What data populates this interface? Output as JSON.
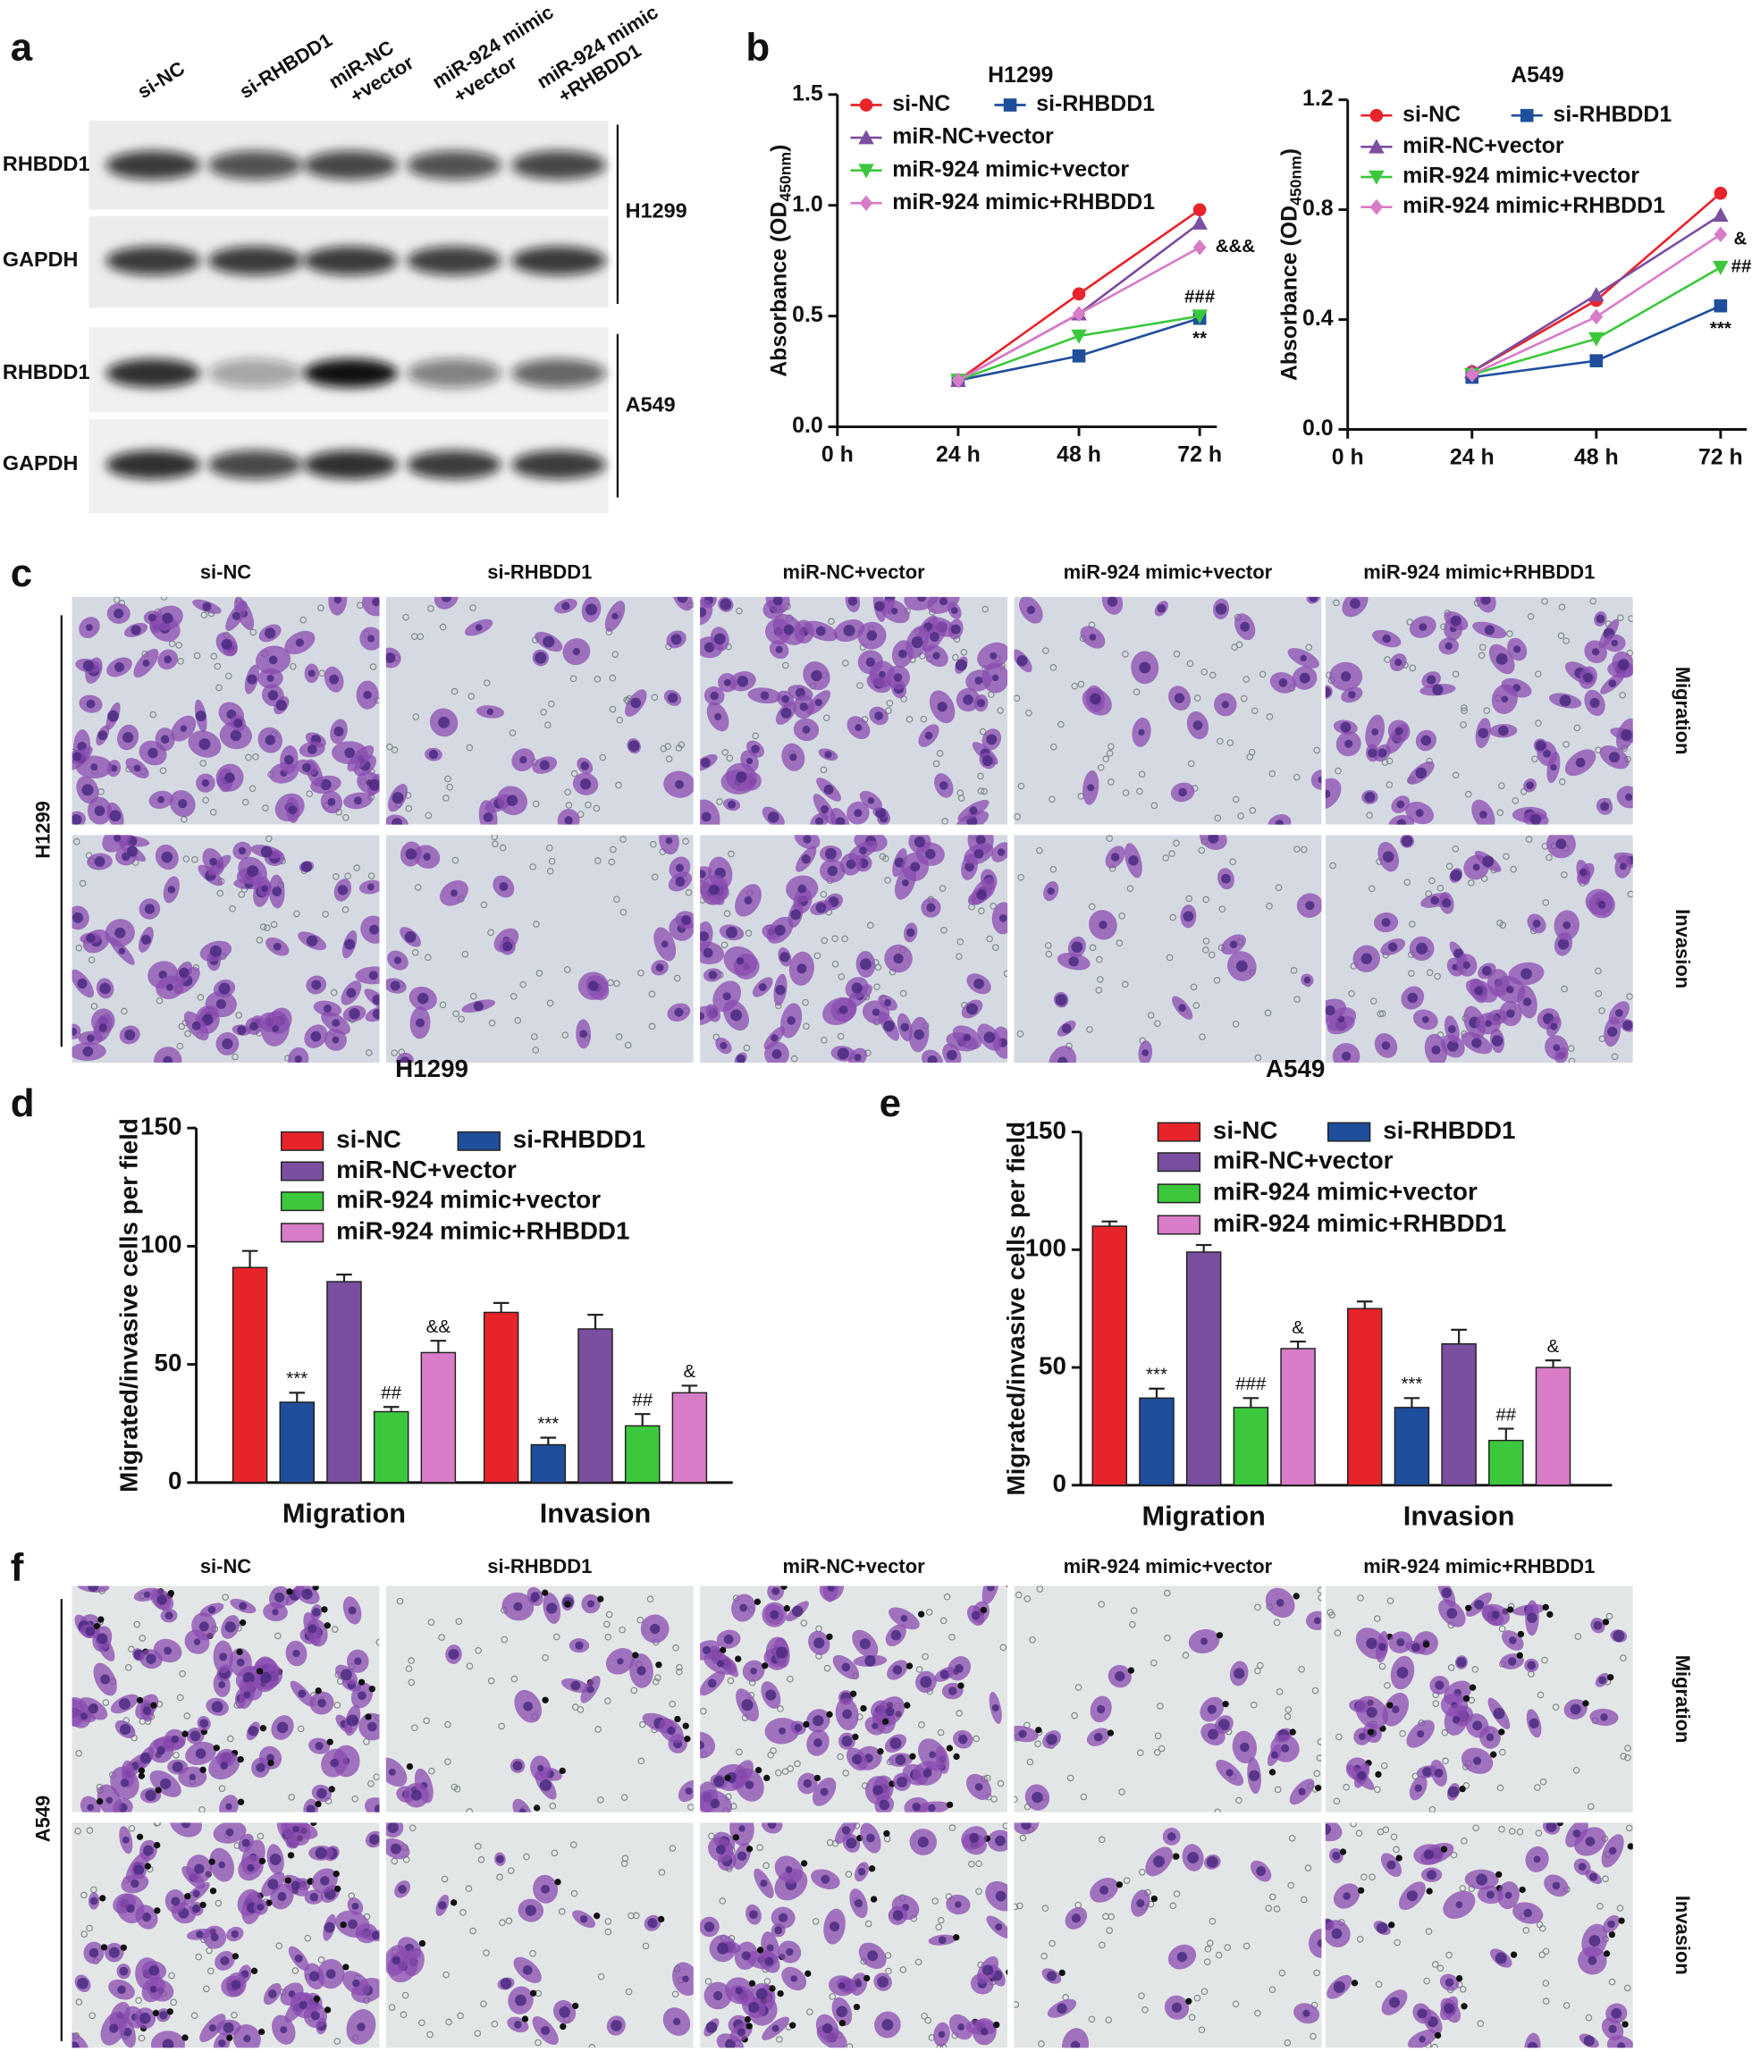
{
  "panel_labels": [
    "a",
    "b",
    "c",
    "d",
    "e",
    "f"
  ],
  "blot": {
    "lanes": [
      [
        "si-NC"
      ],
      [
        "si-RHBDD1"
      ],
      [
        "miR-NC",
        "+vector"
      ],
      [
        "miR-924 mimic",
        "+vector"
      ],
      [
        "miR-924 mimic",
        "+RHBDD1"
      ]
    ],
    "rows": [
      "RHBDD1",
      "GAPDH",
      "RHBDD1",
      "GAPDH"
    ],
    "cell_lines": [
      "H1299",
      "A549"
    ]
  },
  "micrographs": {
    "groups": [
      "si-NC",
      "si-RHBDD1",
      "miR-NC+vector",
      "miR-924 mimic+vector",
      "miR-924 mimic+RHBDD1"
    ],
    "rows": [
      "Migration",
      "Invasion"
    ],
    "cell_lines": [
      "H1299",
      "A549"
    ]
  },
  "chart_data": [
    {
      "type": "line",
      "title": "H1299",
      "y_label": "Absorbance (OD",
      "y_label_subscript": "450nm",
      "y_label_suffix": ")",
      "categories": [
        "0 h",
        "24 h",
        "48 h",
        "72 h"
      ],
      "ylim": [
        0,
        1.5
      ],
      "yticks": [
        {
          "value": 0,
          "label": "0.0"
        },
        0.5,
        {
          "value": 1,
          "label": "1.0"
        },
        1.5
      ],
      "legend": "upper left",
      "series": [
        {
          "name": "si-NC",
          "color": "#e8242b",
          "marker": "circle",
          "values": [
            null,
            0.21,
            0.6,
            0.98
          ]
        },
        {
          "name": "si-RHBDD1",
          "color": "#1f4e9c",
          "marker": "square",
          "values": [
            null,
            0.21,
            0.32,
            0.49
          ],
          "annotation": "**"
        },
        {
          "name": "miR-NC+vector",
          "color": "#7b4fa0",
          "marker": "triangle-up",
          "values": [
            null,
            0.21,
            0.51,
            0.92
          ]
        },
        {
          "name": "miR-924 mimic+vector",
          "color": "#3cc83c",
          "marker": "triangle-down",
          "values": [
            null,
            0.21,
            0.41,
            0.5
          ],
          "annotation": "###"
        },
        {
          "name": "miR-924 mimic+RHBDD1",
          "color": "#d87cc8",
          "marker": "diamond",
          "values": [
            null,
            0.21,
            0.51,
            0.81
          ],
          "annotation": "&&&"
        }
      ]
    },
    {
      "type": "line",
      "title": "A549",
      "y_label": "Absorbance (OD",
      "y_label_subscript": "450nm",
      "y_label_suffix": ")",
      "categories": [
        "0 h",
        "24 h",
        "48 h",
        "72 h"
      ],
      "ylim": [
        0,
        1.2
      ],
      "yticks": [
        {
          "value": 0,
          "label": "0.0"
        },
        0.4,
        0.8,
        1.2
      ],
      "legend": "upper left",
      "series": [
        {
          "name": "si-NC",
          "color": "#e8242b",
          "marker": "circle",
          "values": [
            null,
            0.21,
            0.47,
            0.86
          ]
        },
        {
          "name": "si-RHBDD1",
          "color": "#1f4e9c",
          "marker": "square",
          "values": [
            null,
            0.19,
            0.25,
            0.45
          ],
          "annotation": "***"
        },
        {
          "name": "miR-NC+vector",
          "color": "#7b4fa0",
          "marker": "triangle-up",
          "values": [
            null,
            0.21,
            0.49,
            0.78
          ]
        },
        {
          "name": "miR-924 mimic+vector",
          "color": "#3cc83c",
          "marker": "triangle-down",
          "values": [
            null,
            0.2,
            0.33,
            0.59
          ],
          "annotation": "##"
        },
        {
          "name": "miR-924 mimic+RHBDD1",
          "color": "#d87cc8",
          "marker": "diamond",
          "values": [
            null,
            0.2,
            0.41,
            0.71
          ],
          "annotation": "&"
        }
      ]
    },
    {
      "type": "bar",
      "title": "H1299",
      "y_label": "Migrated/invasive cells per field",
      "categories": [
        "Migration",
        "Invasion"
      ],
      "ylim": [
        0,
        150
      ],
      "yticks": [
        0,
        50,
        100,
        150
      ],
      "legend": "upper center",
      "series": [
        {
          "name": "si-NC",
          "color": "#e8242b",
          "values": [
            91,
            72
          ],
          "errors": [
            7,
            4
          ]
        },
        {
          "name": "si-RHBDD1",
          "color": "#1f4e9c",
          "values": [
            34,
            16
          ],
          "errors": [
            4,
            3
          ],
          "annotations": [
            "***",
            "***"
          ]
        },
        {
          "name": "miR-NC+vector",
          "color": "#7b4fa0",
          "values": [
            85,
            65
          ],
          "errors": [
            3,
            6
          ]
        },
        {
          "name": "miR-924 mimic+vector",
          "color": "#3cc83c",
          "values": [
            30,
            24
          ],
          "errors": [
            2,
            5
          ],
          "annotations": [
            "##",
            "##"
          ]
        },
        {
          "name": "miR-924 mimic+RHBDD1",
          "color": "#d87cc8",
          "values": [
            55,
            38
          ],
          "errors": [
            5,
            3
          ],
          "annotations": [
            "&&",
            "&"
          ]
        }
      ]
    },
    {
      "type": "bar",
      "title": "A549",
      "y_label": "Migrated/invasive cells per field",
      "categories": [
        "Migration",
        "Invasion"
      ],
      "ylim": [
        0,
        150
      ],
      "yticks": [
        0,
        50,
        100,
        150
      ],
      "legend": "upper center",
      "series": [
        {
          "name": "si-NC",
          "color": "#e8242b",
          "values": [
            110,
            75
          ],
          "errors": [
            2,
            3
          ]
        },
        {
          "name": "si-RHBDD1",
          "color": "#1f4e9c",
          "values": [
            37,
            33
          ],
          "errors": [
            4,
            4
          ],
          "annotations": [
            "***",
            "***"
          ]
        },
        {
          "name": "miR-NC+vector",
          "color": "#7b4fa0",
          "values": [
            99,
            60
          ],
          "errors": [
            3,
            6
          ]
        },
        {
          "name": "miR-924 mimic+vector",
          "color": "#3cc83c",
          "values": [
            33,
            19
          ],
          "errors": [
            4,
            5
          ],
          "annotations": [
            "###",
            "##"
          ]
        },
        {
          "name": "miR-924 mimic+RHBDD1",
          "color": "#d87cc8",
          "values": [
            58,
            50
          ],
          "errors": [
            3,
            3
          ],
          "annotations": [
            "&",
            "&"
          ]
        }
      ]
    }
  ]
}
